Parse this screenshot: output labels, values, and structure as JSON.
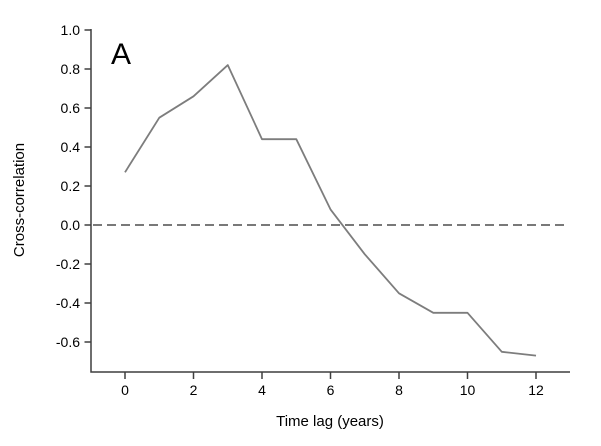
{
  "chart_data": {
    "type": "line",
    "title": "",
    "panel_label": "A",
    "xlabel": "Time lag (years)",
    "ylabel": "Cross-correlation",
    "series": [
      {
        "name": "cross-correlation",
        "x": [
          0,
          1,
          2,
          3,
          4,
          5,
          6,
          7,
          8,
          9,
          10,
          11,
          12
        ],
        "y": [
          0.27,
          0.55,
          0.66,
          0.82,
          0.44,
          0.44,
          0.08,
          -0.15,
          -0.35,
          -0.45,
          -0.45,
          -0.65,
          -0.67
        ]
      }
    ],
    "xticks": [
      0,
      2,
      4,
      6,
      8,
      10,
      12
    ],
    "yticks": [
      1.0,
      0.8,
      0.6,
      0.4,
      0.2,
      0.0,
      -0.2,
      -0.4,
      -0.6
    ],
    "xlim": [
      -1,
      13
    ],
    "ylim": [
      -0.75,
      1.01
    ],
    "grid": false,
    "legend": false,
    "zero_line": {
      "value": 0.0,
      "style": "dashed"
    },
    "colors": {
      "line": "#7d7d7d",
      "zero_line": "#4d4d4d",
      "axis": "#3f3f3f",
      "text": "#000000",
      "background": "#ffffff"
    }
  }
}
